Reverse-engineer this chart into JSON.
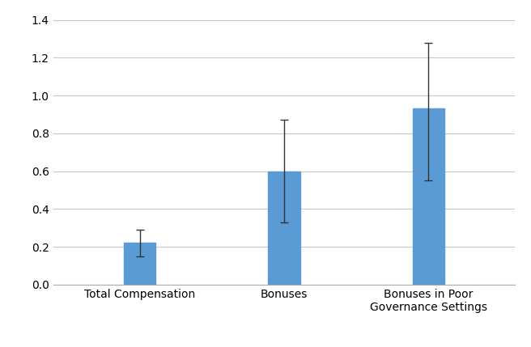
{
  "categories": [
    "Total Compensation",
    "Bonuses",
    "Bonuses in Poor\nGovernance Settings"
  ],
  "values": [
    0.22,
    0.6,
    0.93
  ],
  "errors_upper": [
    0.07,
    0.27,
    0.35
  ],
  "errors_lower": [
    0.07,
    0.27,
    0.38
  ],
  "bar_color": "#5B9BD5",
  "ylim": [
    0,
    1.45
  ],
  "yticks": [
    0,
    0.2,
    0.4,
    0.6,
    0.8,
    1.0,
    1.2,
    1.4
  ],
  "grid_color": "#C8C8C8",
  "background_color": "#FFFFFF",
  "bar_width": 0.22
}
